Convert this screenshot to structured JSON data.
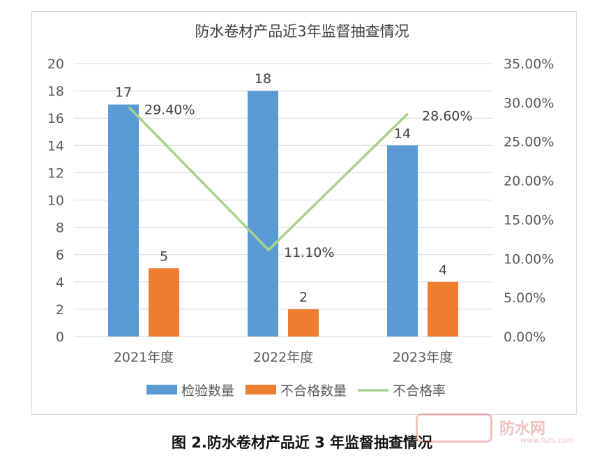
{
  "chart_data": {
    "type": "bar",
    "title": "防水卷材产品近3年监督抽查情况",
    "categories": [
      "2021年度",
      "2022年度",
      "2023年度"
    ],
    "series": [
      {
        "name": "检验数量",
        "type": "bar",
        "axis": "left",
        "color": "#5b9bd5",
        "values": [
          17,
          18,
          14
        ]
      },
      {
        "name": "不合格数量",
        "type": "bar",
        "axis": "left",
        "color": "#ed7d31",
        "values": [
          5,
          2,
          4
        ]
      },
      {
        "name": "不合格率",
        "type": "line",
        "axis": "right",
        "color": "#a9d18e",
        "values": [
          29.4,
          11.1,
          28.6
        ]
      }
    ],
    "y_left": {
      "min": 0,
      "max": 20,
      "ticks": [
        "0",
        "2",
        "4",
        "6",
        "8",
        "10",
        "12",
        "14",
        "16",
        "18",
        "20"
      ]
    },
    "y_right": {
      "min": 0,
      "max": 35,
      "ticks": [
        "0.00%",
        "5.00%",
        "10.00%",
        "15.00%",
        "20.00%",
        "25.00%",
        "30.00%",
        "35.00%"
      ]
    },
    "bar_labels": [
      [
        "17",
        "5"
      ],
      [
        "18",
        "2"
      ],
      [
        "14",
        "4"
      ]
    ],
    "line_labels": [
      "29.40%",
      "11.10%",
      "28.60%"
    ],
    "gridlines": true,
    "legend_position": "bottom"
  },
  "caption": "图 2.防水卷材产品近 3 年监督抽查情况",
  "watermark": {
    "text": "防水网",
    "url": "www.fszs.com"
  }
}
